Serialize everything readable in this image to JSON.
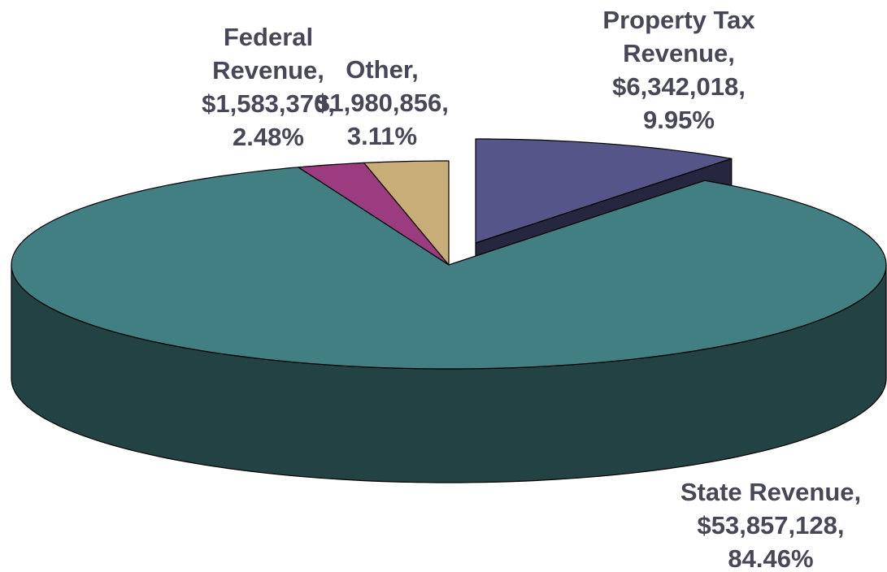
{
  "chart_data": {
    "type": "pie3d",
    "categories": [
      "Property Tax Revenue,",
      "State Revenue,",
      "Federal Revenue,",
      "Other,"
    ],
    "values": [
      6342018,
      53857128,
      1583370,
      1980856
    ],
    "value_labels": [
      "$6,342,018,",
      "$53,857,128,",
      "$1,583,370,",
      "$1,980,856,"
    ],
    "percentages": [
      9.95,
      84.46,
      2.48,
      3.11
    ],
    "percentage_labels": [
      "9.95%",
      "84.46%",
      "2.48%",
      "3.11%"
    ],
    "colors": [
      "#55558a",
      "#417f83",
      "#9b3b80",
      "#c8ad78"
    ],
    "explode": [
      true,
      false,
      false,
      false
    ]
  }
}
